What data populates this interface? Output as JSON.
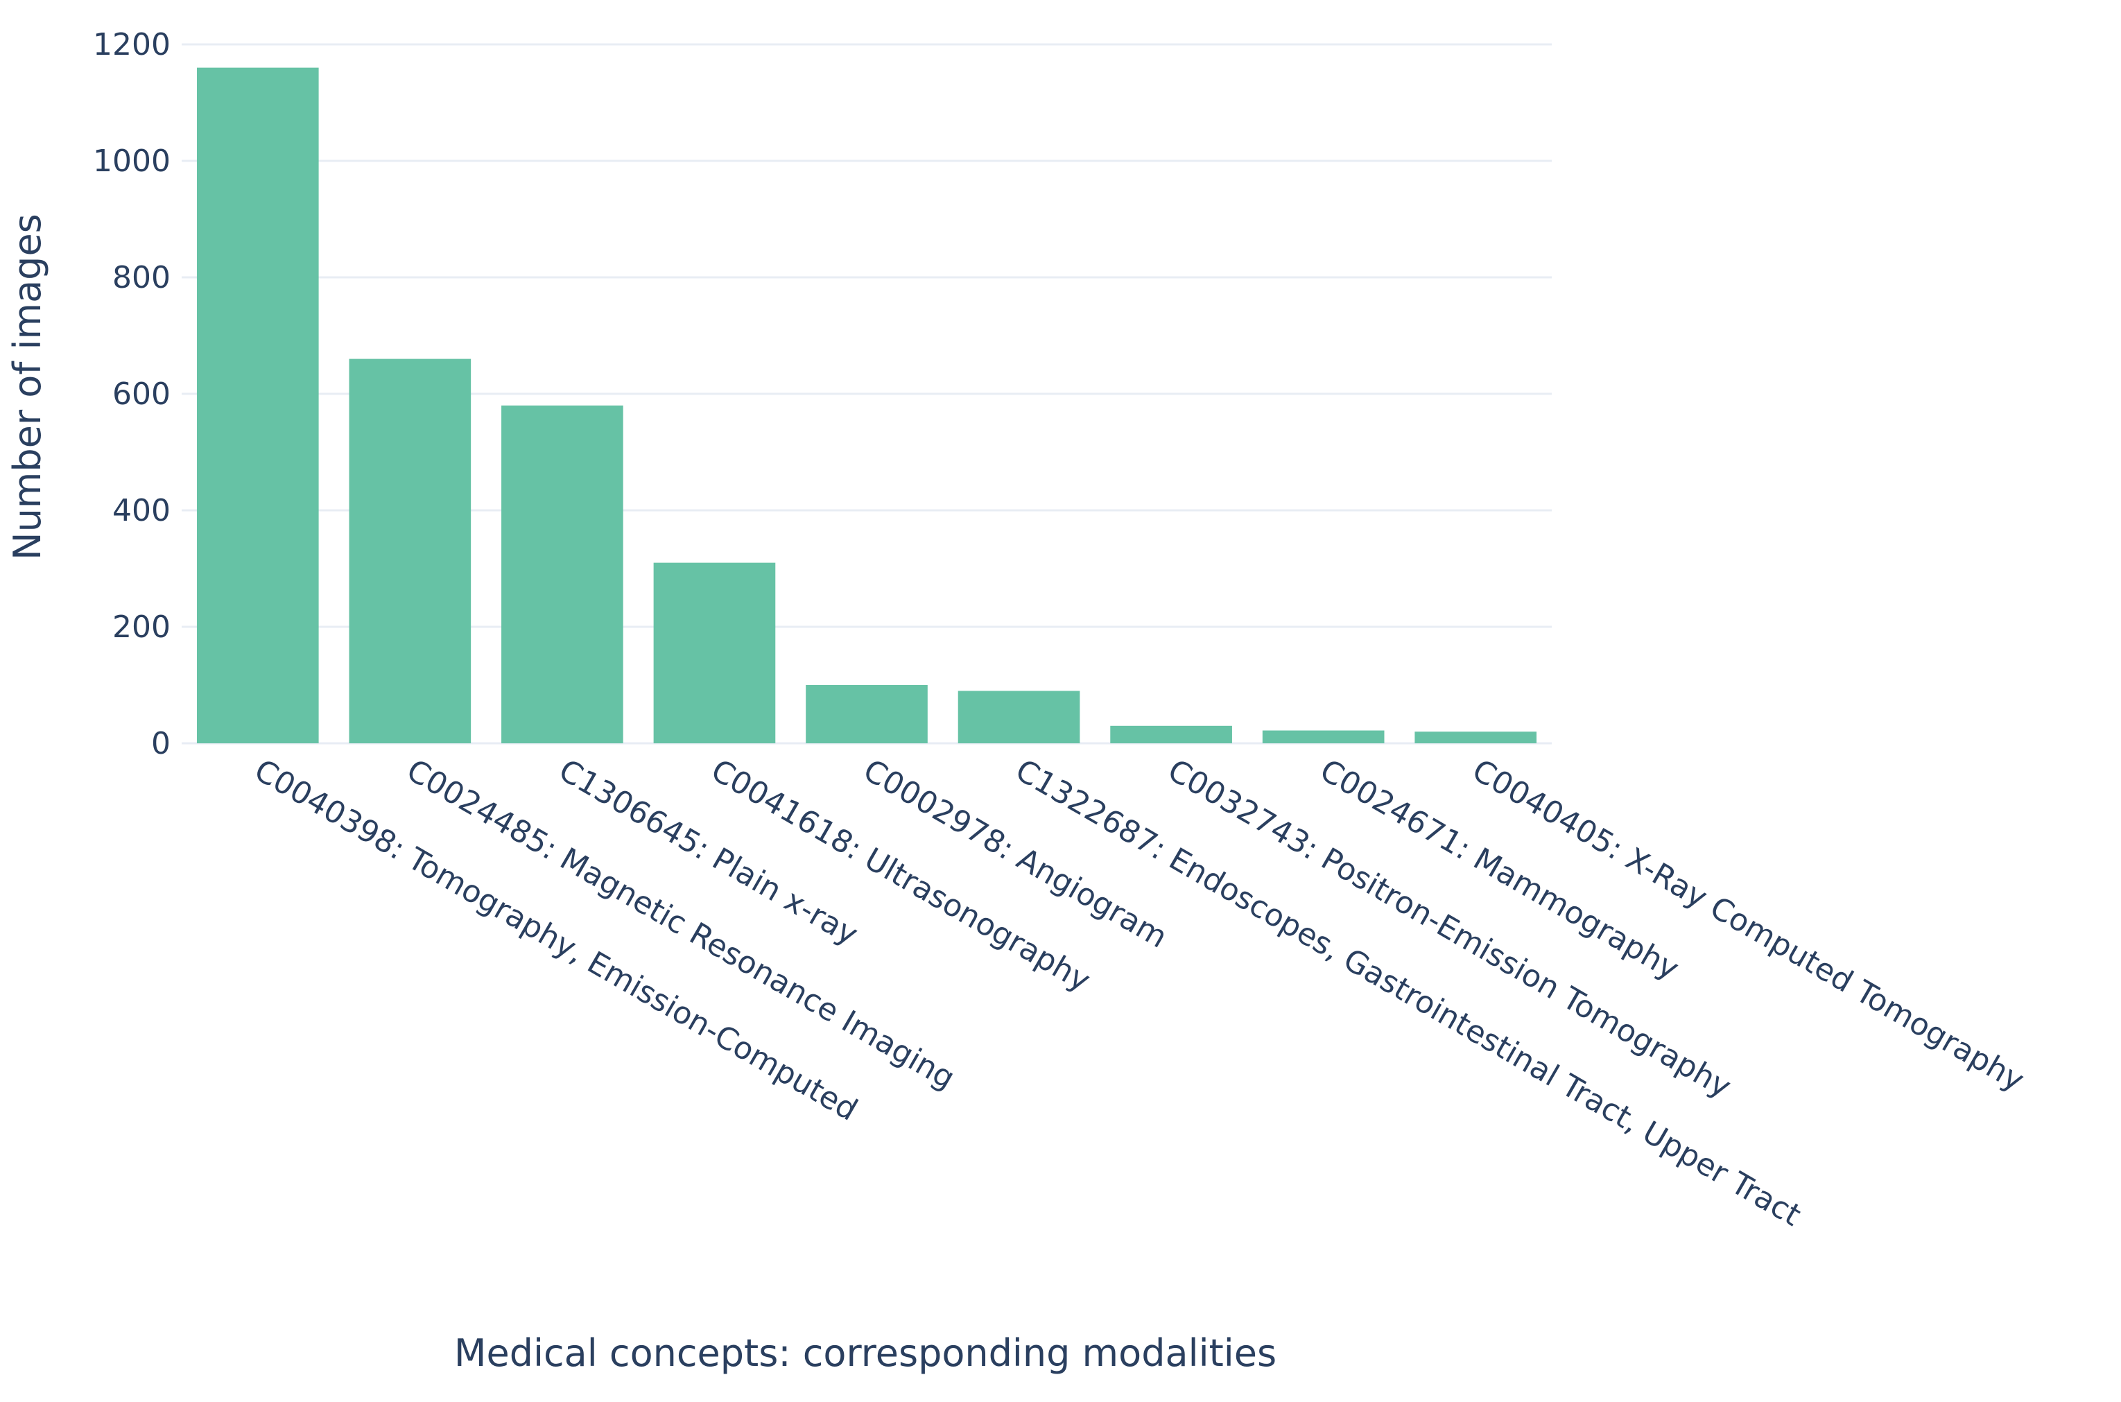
{
  "chart_data": {
    "type": "bar",
    "title": "",
    "xlabel": "Medical concepts: corresponding modalities",
    "ylabel": "Number of images",
    "ylim": [
      0,
      1200
    ],
    "yticks": [
      0,
      200,
      400,
      600,
      800,
      1000,
      1200
    ],
    "grid": true,
    "bar_color": "#66c2a5",
    "text_color": "#2a3f5f",
    "categories": [
      "C0040398: Tomography, Emission-Computed",
      "C0024485: Magnetic Resonance Imaging",
      "C1306645: Plain x-ray",
      "C0041618: Ultrasonography",
      "C0002978: Angiogram",
      "C1322687: Endoscopes, Gastrointestinal Tract, Upper Tract",
      "C0032743: Positron-Emission Tomography",
      "C0024671: Mammography",
      "C0040405: X-Ray Computed Tomography"
    ],
    "values": [
      1160,
      660,
      580,
      310,
      100,
      90,
      30,
      22,
      20
    ]
  }
}
